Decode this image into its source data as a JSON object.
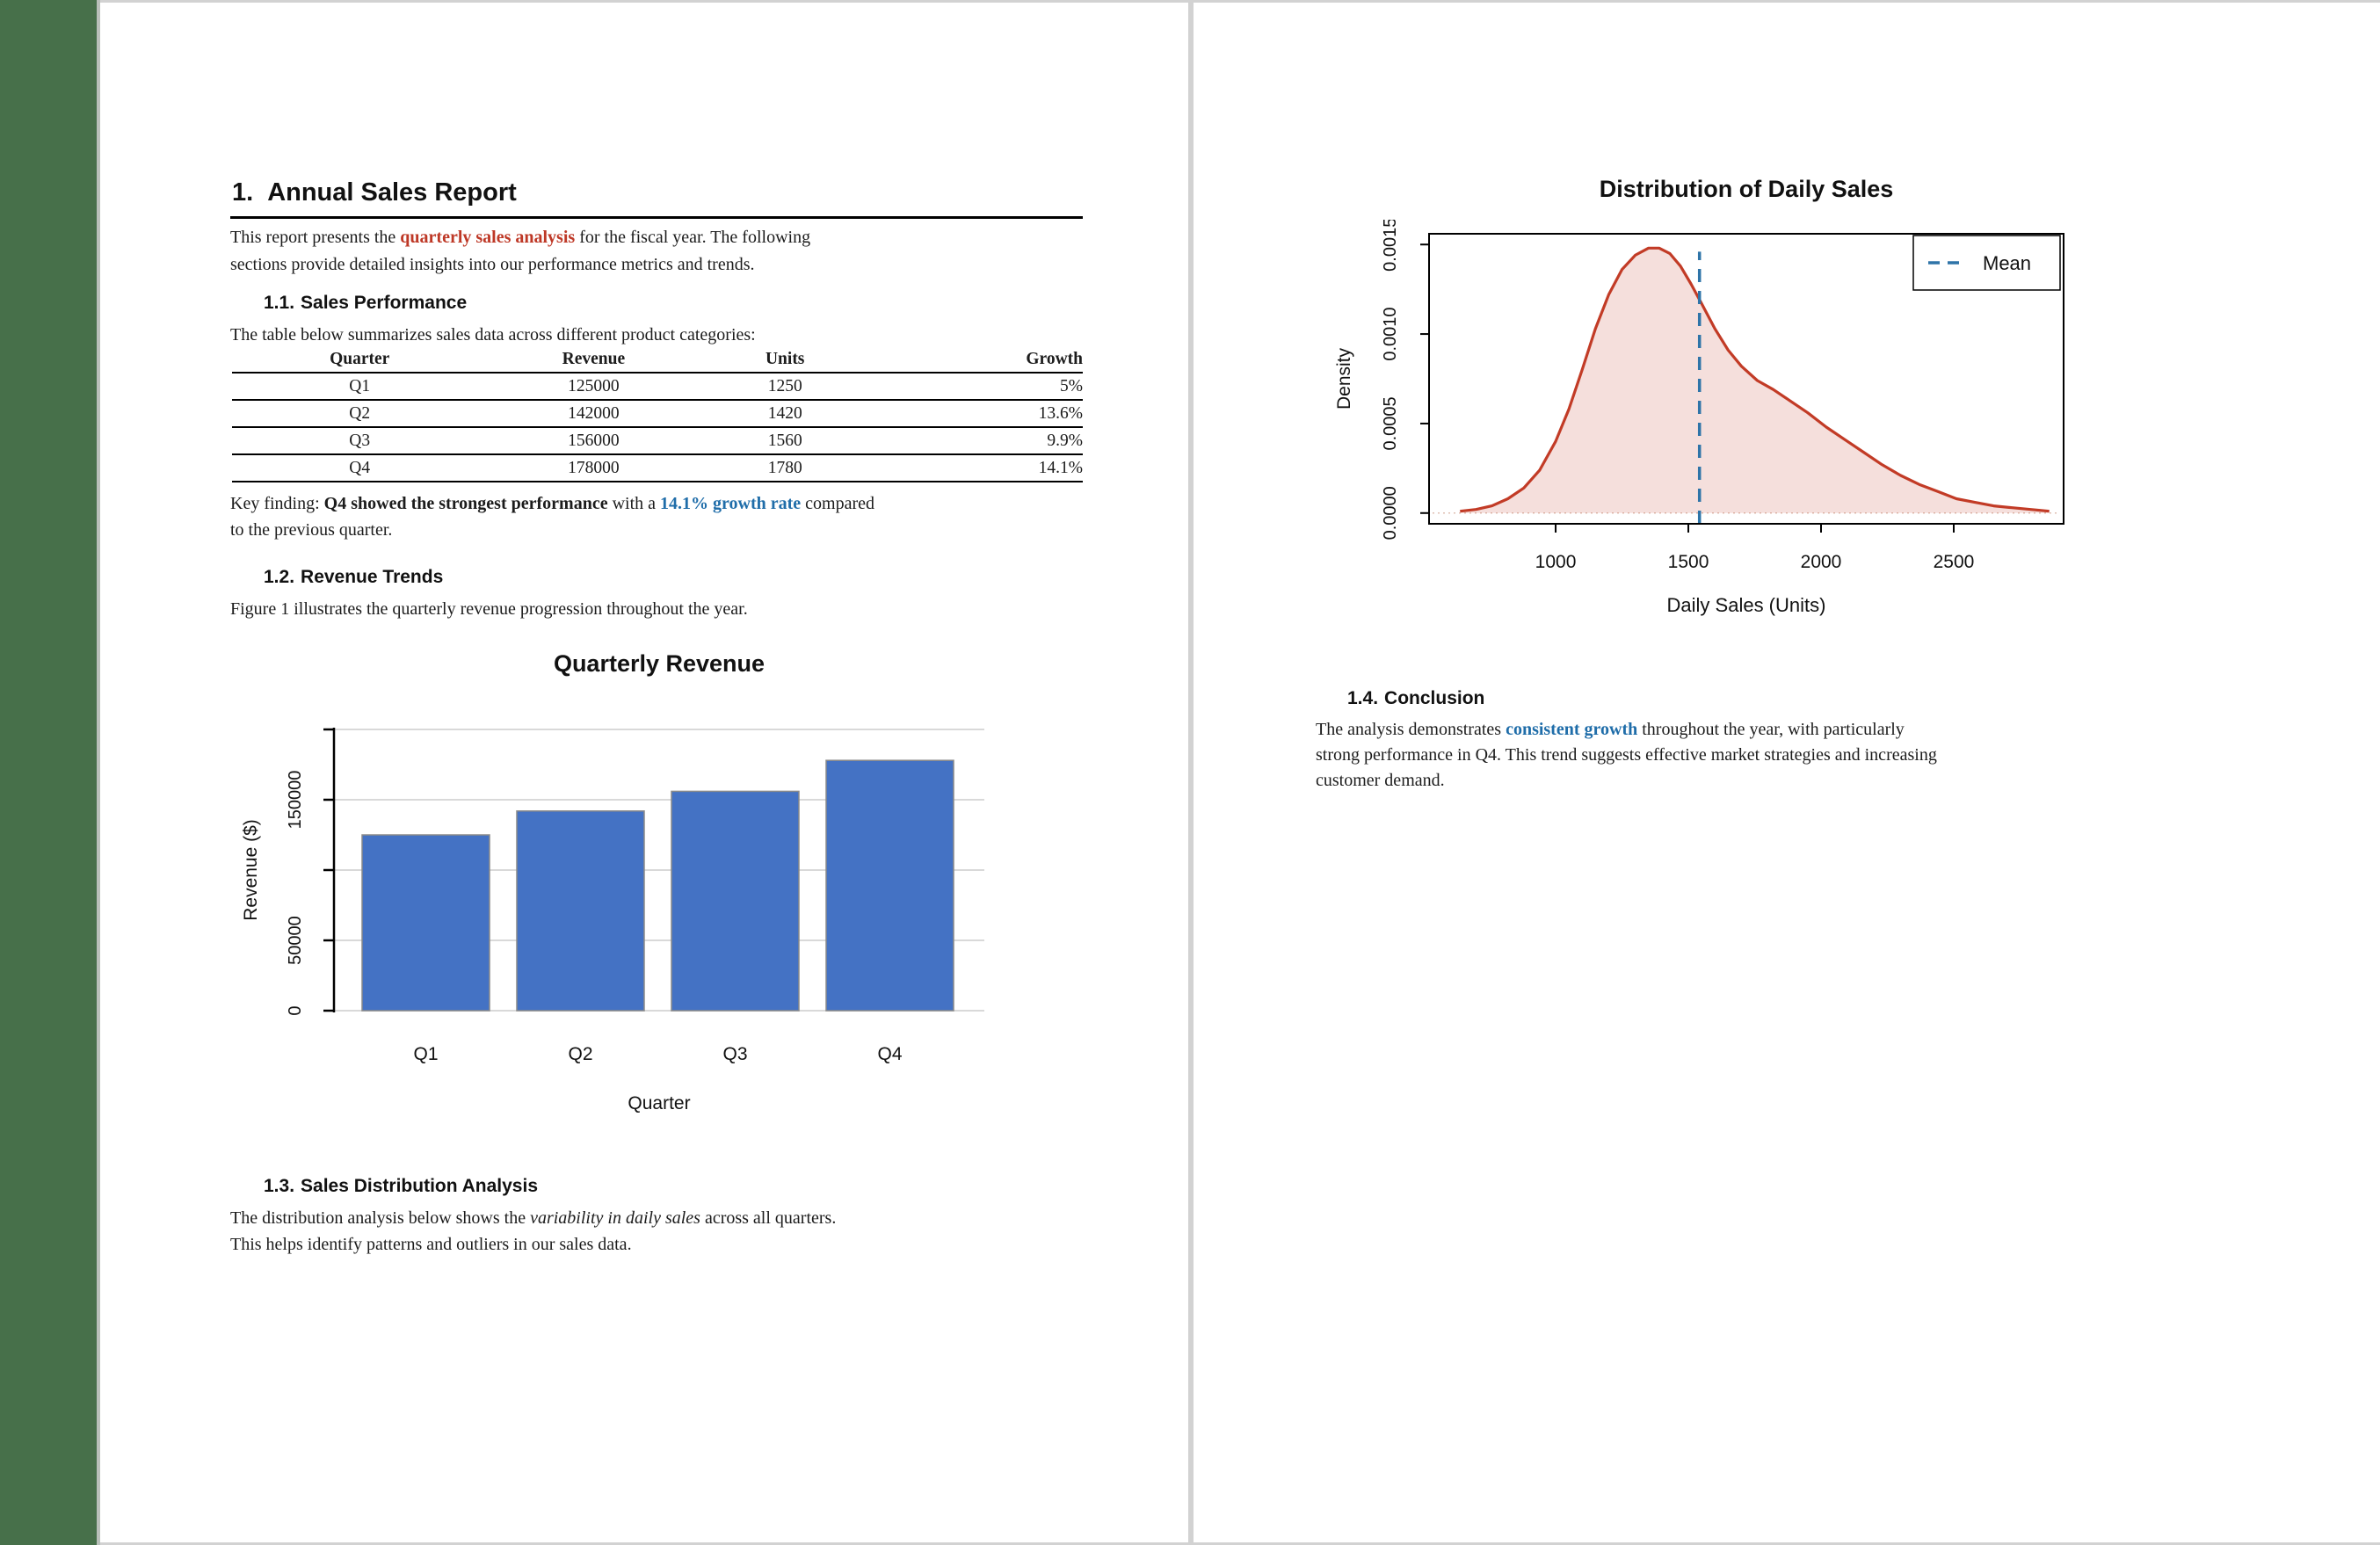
{
  "colors": {
    "strip_green": "#47704A",
    "page_border": "#D2D2D2",
    "accent_red": "#BE3826",
    "accent_blue": "#1F6DA9",
    "bar_fill": "#4472C4",
    "bar_stroke": "#8A8A8A",
    "grid": "#D9D9D9",
    "density_line": "#C23B26",
    "density_baseline": "#DFBFB2",
    "mean_blue": "#2E74A8"
  },
  "page1": {
    "h1": {
      "number": "1.",
      "text": "Annual Sales Report"
    },
    "intro": {
      "s1": "This report presents the ",
      "accent": "quarterly sales analysis",
      "s2": " for the fiscal year. The following",
      "line2": "sections provide detailed insights into our performance metrics and trends."
    },
    "s11": {
      "number": "1.1.",
      "heading": "Sales Performance",
      "lead": "The table below summarizes sales data across different product categories:"
    },
    "table": {
      "headers": [
        "Quarter",
        "Revenue",
        "Units",
        "Growth"
      ],
      "rows": [
        [
          "Q1",
          "125000",
          "1250",
          "5%"
        ],
        [
          "Q2",
          "142000",
          "1420",
          "13.6%"
        ],
        [
          "Q3",
          "156000",
          "1560",
          "9.9%"
        ],
        [
          "Q4",
          "178000",
          "1780",
          "14.1%"
        ]
      ]
    },
    "key_finding": {
      "s1": "Key finding: ",
      "bold": "Q4 showed the strongest performance",
      "s2": " with a ",
      "accent": "14.1% growth rate",
      "s3": " compared",
      "line2": "to the previous quarter."
    },
    "s12": {
      "number": "1.2.",
      "heading": "Revenue Trends",
      "lead": "Figure 1 illustrates the quarterly revenue progression throughout the year."
    },
    "s13": {
      "number": "1.3.",
      "heading": "Sales Distribution Analysis",
      "l1a": "The distribution analysis below shows the ",
      "l1i": "variability in daily sales",
      "l1b": " across all quarters.",
      "line2": "This helps identify patterns and outliers in our sales data."
    }
  },
  "page2": {
    "s14": {
      "number": "1.4.",
      "heading": "Conclusion",
      "l1a": "The analysis demonstrates ",
      "accent": "consistent growth",
      "l1b": " throughout the year, with particularly",
      "line2": "strong performance in Q4. This trend suggests effective market strategies and increasing",
      "line3": "customer demand."
    }
  },
  "chart_data": [
    {
      "type": "bar",
      "title": "Quarterly Revenue",
      "xlabel": "Quarter",
      "ylabel": "Revenue ($)",
      "categories": [
        "Q1",
        "Q2",
        "Q3",
        "Q4"
      ],
      "values": [
        125000,
        142000,
        156000,
        178000
      ],
      "ylim": [
        0,
        200000
      ],
      "yticks": [
        {
          "value": 0,
          "label": "0"
        },
        {
          "value": 50000,
          "label": "50000"
        },
        {
          "value": 100000,
          "label": ""
        },
        {
          "value": 150000,
          "label": "150000"
        },
        {
          "value": 200000,
          "label": ""
        }
      ],
      "grid": true,
      "legend_position": "none"
    },
    {
      "type": "area",
      "title": "Distribution of Daily Sales",
      "xlabel": "Daily Sales (Units)",
      "ylabel": "Density",
      "xlim": [
        523,
        2914
      ],
      "ylim": [
        -6e-05,
        0.00156
      ],
      "xticks": [
        {
          "value": 1000,
          "label": "1000"
        },
        {
          "value": 1500,
          "label": "1500"
        },
        {
          "value": 2000,
          "label": "2000"
        },
        {
          "value": 2500,
          "label": "2500"
        }
      ],
      "yticks": [
        {
          "value": 0.0,
          "label": "0.0000"
        },
        {
          "value": 0.0005,
          "label": "0.0005"
        },
        {
          "value": 0.001,
          "label": "0.0010"
        },
        {
          "value": 0.0015,
          "label": "0.0015"
        }
      ],
      "mean": 1542,
      "legend": {
        "label": "Mean",
        "position": "top-right"
      },
      "series": [
        {
          "name": "density",
          "x": [
            640,
            700,
            760,
            820,
            880,
            940,
            1000,
            1050,
            1100,
            1150,
            1200,
            1250,
            1300,
            1350,
            1390,
            1430,
            1470,
            1510,
            1550,
            1600,
            1650,
            1700,
            1760,
            1820,
            1880,
            1950,
            2020,
            2090,
            2160,
            2230,
            2300,
            2370,
            2440,
            2510,
            2580,
            2650,
            2720,
            2790,
            2860
          ],
          "y": [
            1e-05,
            2e-05,
            4e-05,
            8e-05,
            0.00014,
            0.00024,
            0.0004,
            0.00058,
            0.0008,
            0.00103,
            0.00122,
            0.00136,
            0.00144,
            0.00148,
            0.00148,
            0.00145,
            0.00138,
            0.00128,
            0.00117,
            0.00103,
            0.00091,
            0.00082,
            0.00074,
            0.00069,
            0.00063,
            0.00056,
            0.00048,
            0.00041,
            0.00034,
            0.00027,
            0.00021,
            0.00016,
            0.00012,
            8e-05,
            6e-05,
            4e-05,
            3e-05,
            2e-05,
            1e-05
          ]
        }
      ]
    }
  ]
}
